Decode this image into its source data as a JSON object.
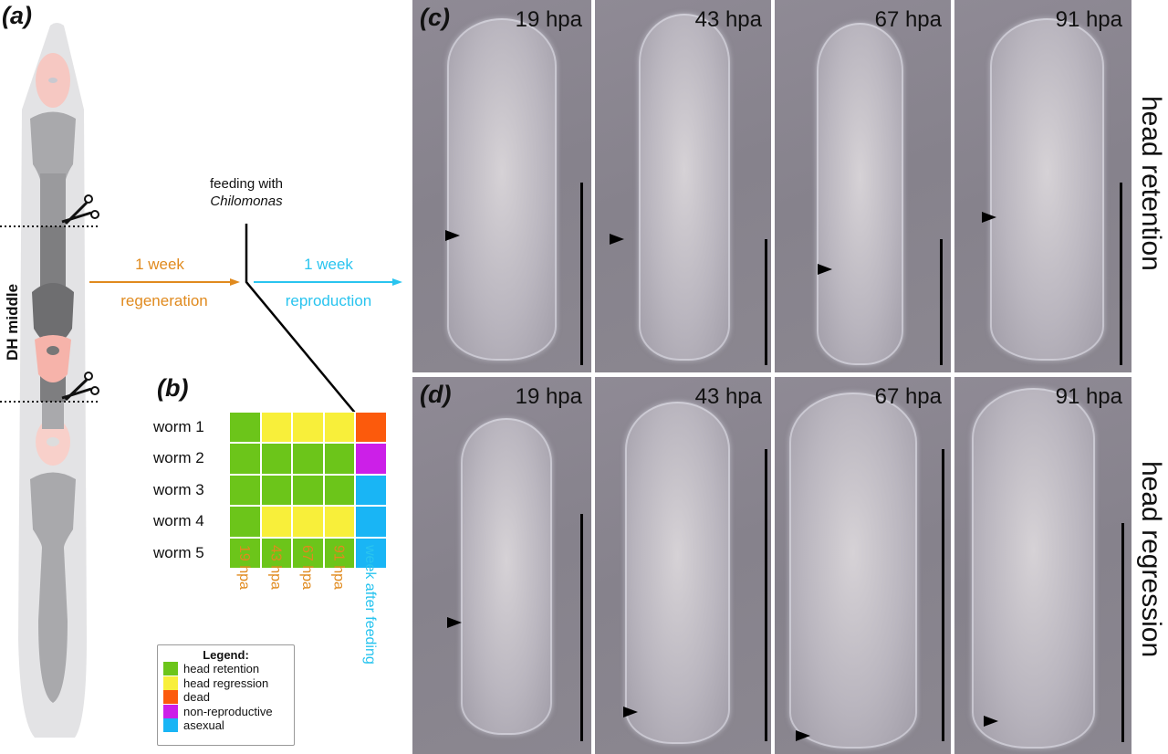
{
  "panels": {
    "a": "(a)",
    "b": "(b)",
    "c": "(c)",
    "d": "(d)"
  },
  "schematic": {
    "side_label": "DH middle",
    "feeding_line1": "feeding with",
    "feeding_line2": "Chilomonas",
    "regen_duration": "1 week",
    "regen_label": "regeneration",
    "repro_duration": "1 week",
    "repro_label": "reproduction",
    "colors": {
      "regeneration": "#e08a1e",
      "reproduction": "#29c4ef"
    }
  },
  "heatmap": {
    "rows": [
      "worm 1",
      "worm 2",
      "worm 3",
      "worm 4",
      "worm 5"
    ],
    "columns": [
      "19 hpa",
      "43 hpa",
      "67 hpa",
      "91 hpa"
    ],
    "final_column": "week after feeding",
    "cells": [
      [
        "head retention",
        "head regression",
        "head regression",
        "head regression",
        "dead"
      ],
      [
        "head retention",
        "head retention",
        "head retention",
        "head retention",
        "non-reproductive"
      ],
      [
        "head retention",
        "head retention",
        "head retention",
        "head retention",
        "asexual"
      ],
      [
        "head retention",
        "head regression",
        "head regression",
        "head regression",
        "asexual"
      ],
      [
        "head retention",
        "head retention",
        "head retention",
        "head retention",
        "asexual"
      ]
    ],
    "legend_title": "Legend:",
    "legend": [
      {
        "label": "head retention",
        "color": "#6cc51a"
      },
      {
        "label": "head regression",
        "color": "#f8ef3a"
      },
      {
        "label": "dead",
        "color": "#fc5a0c"
      },
      {
        "label": "non-reproductive",
        "color": "#cc1fe8"
      },
      {
        "label": "asexual",
        "color": "#19b5f5"
      }
    ]
  },
  "micrographs": {
    "row_c_label": "head retention",
    "row_d_label": "head regression",
    "timepoints": [
      "19 hpa",
      "43 hpa",
      "67 hpa",
      "91 hpa"
    ]
  }
}
